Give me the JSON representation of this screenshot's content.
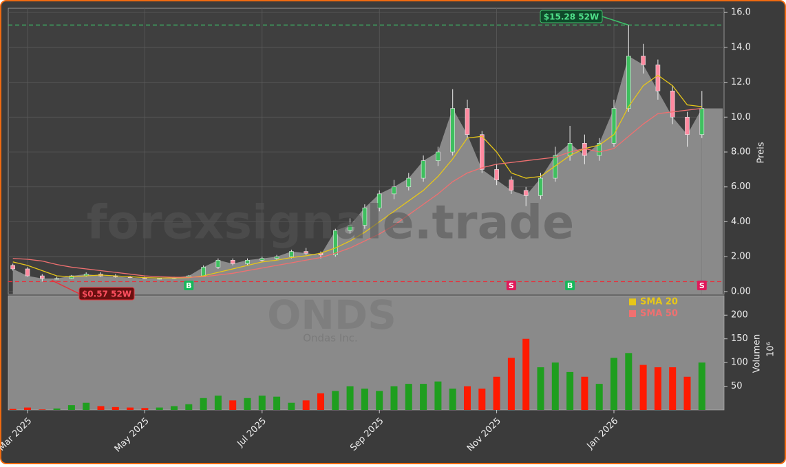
{
  "chart_data": {
    "type": "candlestick",
    "watermark": "forexsignale.trade",
    "symbol": "ONDS",
    "company": "Ondas Inc.",
    "ylabel": "Preis",
    "y2label": "Volumen",
    "y2unit": "10⁶",
    "categories": [
      null,
      "Mar 2025",
      null,
      null,
      null,
      null,
      null,
      null,
      null,
      "May 2025",
      null,
      null,
      null,
      null,
      null,
      null,
      null,
      "Jul 2025",
      null,
      null,
      null,
      null,
      null,
      null,
      null,
      "Sep 2025",
      null,
      null,
      null,
      null,
      null,
      null,
      null,
      "Nov 2025",
      null,
      null,
      null,
      null,
      null,
      null,
      null,
      "Jan 2026",
      null,
      null,
      null,
      null,
      null,
      null
    ],
    "open": [
      1.5,
      1.3,
      0.9,
      0.75,
      0.75,
      0.9,
      1.0,
      0.9,
      0.85,
      0.8,
      0.75,
      0.75,
      0.8,
      0.9,
      1.4,
      1.8,
      1.6,
      1.8,
      1.9,
      2.0,
      2.3,
      2.2,
      2.1,
      3.5,
      3.8,
      4.8,
      5.6,
      6.0,
      6.5,
      7.5,
      8.0,
      10.5,
      9.0,
      7.0,
      6.4,
      5.8,
      5.5,
      6.5,
      7.8,
      8.5,
      7.8,
      8.5,
      10.5,
      13.5,
      13.0,
      11.5,
      10.0,
      9.0
    ],
    "high": [
      1.6,
      1.4,
      1.0,
      0.85,
      0.95,
      1.1,
      1.1,
      1.0,
      0.9,
      0.85,
      0.8,
      0.85,
      0.95,
      1.5,
      1.9,
      1.9,
      1.9,
      2.0,
      2.1,
      2.4,
      2.5,
      2.3,
      3.6,
      4.2,
      5.0,
      5.8,
      6.4,
      6.8,
      7.8,
      8.3,
      11.6,
      11.0,
      9.2,
      7.3,
      6.6,
      6.0,
      6.8,
      8.3,
      9.5,
      9.0,
      8.8,
      11.0,
      15.28,
      14.2,
      13.3,
      11.8,
      10.3,
      11.5
    ],
    "low": [
      1.2,
      0.85,
      0.57,
      0.7,
      0.72,
      0.85,
      0.85,
      0.8,
      0.78,
      0.72,
      0.7,
      0.72,
      0.78,
      0.88,
      1.3,
      1.5,
      1.5,
      1.7,
      1.8,
      1.9,
      2.1,
      1.9,
      2.0,
      3.3,
      3.6,
      4.6,
      5.3,
      5.8,
      6.3,
      7.2,
      7.8,
      8.8,
      6.8,
      6.1,
      5.6,
      4.9,
      5.3,
      6.3,
      7.5,
      7.3,
      7.5,
      8.3,
      10.3,
      12.5,
      11.0,
      9.6,
      8.3,
      8.8
    ],
    "close": [
      1.3,
      0.9,
      0.75,
      0.75,
      0.9,
      1.0,
      0.9,
      0.85,
      0.8,
      0.75,
      0.75,
      0.8,
      0.9,
      1.4,
      1.8,
      1.6,
      1.8,
      1.9,
      2.0,
      2.3,
      2.2,
      2.1,
      3.5,
      3.8,
      4.8,
      5.6,
      6.0,
      6.5,
      7.5,
      8.0,
      10.5,
      9.0,
      7.0,
      6.4,
      5.8,
      5.5,
      6.5,
      7.8,
      8.5,
      7.8,
      8.5,
      10.5,
      13.5,
      13.0,
      11.5,
      10.0,
      9.0,
      10.5
    ],
    "series": [
      {
        "name": "SMA 20",
        "color": "#e6c619",
        "values": [
          1.7,
          1.5,
          1.2,
          0.9,
          0.85,
          0.9,
          0.95,
          0.9,
          0.85,
          0.8,
          0.78,
          0.78,
          0.8,
          0.9,
          1.1,
          1.3,
          1.5,
          1.7,
          1.8,
          1.95,
          2.05,
          2.2,
          2.5,
          2.9,
          3.4,
          4.0,
          4.6,
          5.2,
          5.8,
          6.6,
          7.6,
          8.8,
          8.9,
          8.0,
          6.8,
          6.5,
          6.6,
          7.2,
          7.8,
          8.2,
          8.4,
          9.0,
          10.6,
          11.8,
          12.4,
          11.8,
          10.7,
          10.6
        ]
      },
      {
        "name": "SMA 50",
        "color": "#f07070",
        "values": [
          1.9,
          1.85,
          1.75,
          1.55,
          1.4,
          1.3,
          1.2,
          1.1,
          1.0,
          0.9,
          0.85,
          0.82,
          0.82,
          0.85,
          0.95,
          1.05,
          1.2,
          1.35,
          1.5,
          1.65,
          1.8,
          1.95,
          2.2,
          2.5,
          2.9,
          3.3,
          3.8,
          4.4,
          5.0,
          5.6,
          6.3,
          6.8,
          7.1,
          7.3,
          7.4,
          7.5,
          7.6,
          7.7,
          8.0,
          8.2,
          8.0,
          8.2,
          8.9,
          9.6,
          10.2,
          10.3,
          10.4,
          10.5
        ]
      }
    ],
    "volume": [
      2,
      5,
      1,
      3,
      10,
      15,
      8,
      6,
      5,
      4,
      5,
      8,
      12,
      25,
      30,
      20,
      25,
      30,
      28,
      15,
      20,
      35,
      40,
      50,
      45,
      40,
      50,
      55,
      55,
      60,
      45,
      50,
      45,
      70,
      110,
      150,
      90,
      100,
      80,
      70,
      55,
      110,
      120,
      95,
      90,
      90,
      70,
      100
    ],
    "signals": [
      null,
      null,
      null,
      null,
      null,
      null,
      null,
      null,
      null,
      null,
      null,
      null,
      "B",
      null,
      null,
      null,
      null,
      null,
      null,
      null,
      null,
      null,
      null,
      null,
      null,
      null,
      null,
      null,
      null,
      null,
      null,
      null,
      null,
      null,
      "S",
      null,
      null,
      null,
      "B",
      null,
      null,
      null,
      null,
      null,
      null,
      null,
      null,
      "S"
    ],
    "annotations": [
      {
        "label": "$15.28 52W",
        "value": 15.28,
        "color": "#3cc36a"
      },
      {
        "label": "$0.57 52W",
        "value": 0.57,
        "color": "#e8303a"
      }
    ],
    "ylim": [
      -0.16,
      16.24
    ],
    "yticks": [
      {
        "value": 0,
        "label": "0.00"
      },
      {
        "value": 2,
        "label": "2.00"
      },
      {
        "value": 4,
        "label": "4.00"
      },
      {
        "value": 6,
        "label": "6.00"
      },
      {
        "value": 8,
        "label": "8.00"
      },
      {
        "value": 10,
        "label": "10.0"
      },
      {
        "value": 12,
        "label": "12.0"
      },
      {
        "value": 14,
        "label": "14.0"
      },
      {
        "value": 16,
        "label": "16.0"
      }
    ],
    "y2lim": [
      0,
      241
    ],
    "y2ticks": [
      50,
      100,
      150,
      200
    ],
    "up_color": "#1f9e1f",
    "down_color": "#ff1a00",
    "grid": true
  }
}
